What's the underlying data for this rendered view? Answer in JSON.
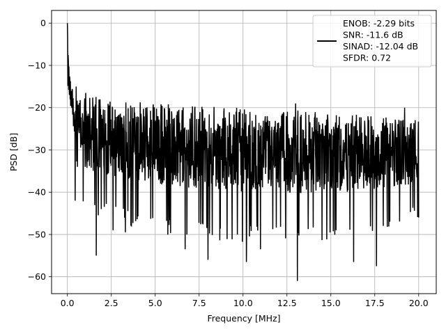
{
  "chart_data": {
    "type": "line",
    "title": "",
    "xlabel": "Frequency [MHz]",
    "ylabel": "PSD [dB]",
    "xlim": [
      -0.9,
      21.0
    ],
    "ylim": [
      -64.0,
      3.0
    ],
    "xticks": [
      0.0,
      2.5,
      5.0,
      7.5,
      10.0,
      12.5,
      15.0,
      17.5,
      20.0
    ],
    "xtick_labels": [
      "0.0",
      "2.5",
      "5.0",
      "7.5",
      "10.0",
      "12.5",
      "15.0",
      "17.5",
      "20.0"
    ],
    "yticks": [
      0,
      -10,
      -20,
      -30,
      -40,
      -50,
      -60
    ],
    "ytick_labels": [
      "0",
      "−10",
      "−20",
      "−30",
      "−40",
      "−50",
      "−60"
    ],
    "grid": true,
    "legend_position": "top-right",
    "legend_lines": [
      "ENOB: -2.29 bits",
      "SNR: -11.6 dB",
      "SINAD: -12.04 dB",
      "SFDR: 0.72"
    ],
    "series": [
      {
        "name": "ENOB: -2.29 bits\nSNR: -11.6 dB\nSINAD: -12.04 dB\nSFDR: 0.72",
        "color": "#000000",
        "style": "noise-like line",
        "x_range": [
          0.0,
          20.0
        ],
        "peak": {
          "x": 0.0,
          "y": 0.0
        },
        "envelope": [
          {
            "x": 0.0,
            "upper": 0.0,
            "lower": -26.0
          },
          {
            "x": 0.1,
            "upper": -9.0,
            "lower": -25.0
          },
          {
            "x": 0.2,
            "upper": -14.0,
            "lower": -26.0
          },
          {
            "x": 0.4,
            "upper": -17.0,
            "lower": -31.0
          },
          {
            "x": 1.0,
            "upper": -17.0,
            "lower": -45.0
          },
          {
            "x": 2.5,
            "upper": -18.0,
            "lower": -47.0
          },
          {
            "x": 5.0,
            "upper": -19.0,
            "lower": -50.0
          },
          {
            "x": 10.0,
            "upper": -20.0,
            "lower": -52.0
          },
          {
            "x": 15.0,
            "upper": -21.0,
            "lower": -52.0
          },
          {
            "x": 20.0,
            "upper": -23.0,
            "lower": -47.0
          }
        ],
        "notable_minima": [
          {
            "x": 0.45,
            "y": -42.0
          },
          {
            "x": 1.65,
            "y": -55.0
          },
          {
            "x": 2.6,
            "y": -49.0
          },
          {
            "x": 3.3,
            "y": -49.5
          },
          {
            "x": 6.7,
            "y": -53.5
          },
          {
            "x": 8.0,
            "y": -56.0
          },
          {
            "x": 10.2,
            "y": -56.5
          },
          {
            "x": 11.0,
            "y": -53.5
          },
          {
            "x": 13.1,
            "y": -61.0
          },
          {
            "x": 16.3,
            "y": -56.5
          },
          {
            "x": 17.6,
            "y": -57.5
          },
          {
            "x": 20.0,
            "y": -46.0
          }
        ],
        "notable_maxima": [
          {
            "x": 0.5,
            "y": -15.0
          },
          {
            "x": 1.05,
            "y": -16.5
          },
          {
            "x": 13.0,
            "y": -19.0
          },
          {
            "x": 19.2,
            "y": -20.0
          }
        ]
      }
    ]
  }
}
